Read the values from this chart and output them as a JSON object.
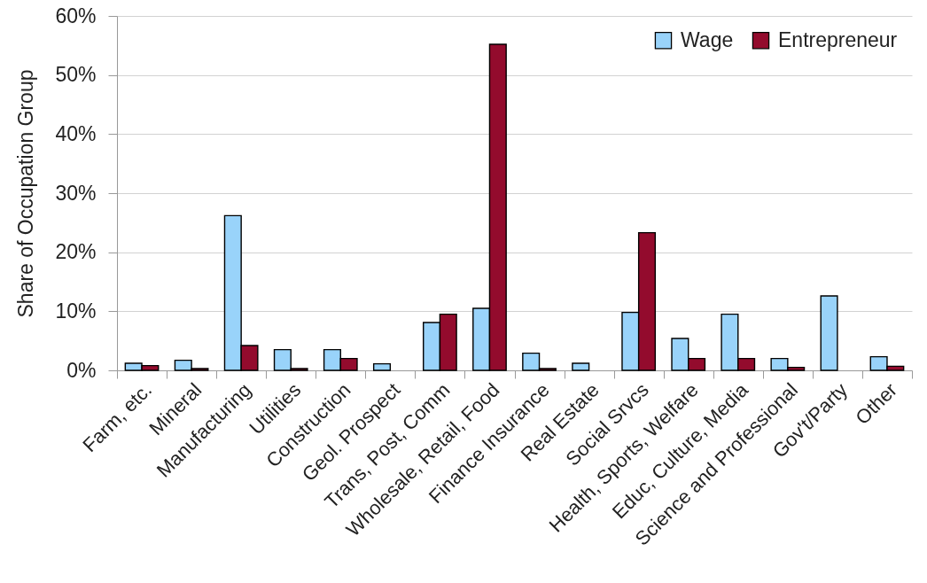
{
  "chart_data": {
    "type": "bar",
    "ylabel": "Share of Occupation Group",
    "categories": [
      "Farm, etc.",
      "Mineral",
      "Manufacturing",
      "Utilities",
      "Construction",
      "Geol. Prospect",
      "Trans, Post, Comm",
      "Wholesale, Retail, Food",
      "Finance Insurance",
      "Real Estate",
      "Social Srvcs",
      "Health, Sports, Welfare",
      "Educ, Culture, Media",
      "Science and Professional",
      "Gov't/Party",
      "Other"
    ],
    "series": [
      {
        "name": "Wage",
        "color": "#99d3fa",
        "values": [
          1.2,
          1.7,
          26.2,
          3.5,
          3.5,
          1.1,
          8.1,
          10.5,
          2.9,
          1.2,
          9.8,
          5.4,
          9.5,
          2.0,
          12.6,
          2.3
        ]
      },
      {
        "name": "Entrepreneur",
        "color": "#930b2d",
        "values": [
          0.8,
          0.3,
          4.2,
          0.3,
          2.0,
          null,
          9.5,
          55.2,
          0.3,
          null,
          23.3,
          2.0,
          2.0,
          0.5,
          null,
          0.7
        ]
      }
    ],
    "ylim": [
      0,
      60
    ],
    "yticks": [
      {
        "value": 0,
        "label": "0%"
      },
      {
        "value": 10,
        "label": "10%"
      },
      {
        "value": 20,
        "label": "20%"
      },
      {
        "value": 30,
        "label": "30%"
      },
      {
        "value": 40,
        "label": "40%"
      },
      {
        "value": 50,
        "label": "50%"
      },
      {
        "value": 60,
        "label": "60%"
      }
    ],
    "grid": "y",
    "legend": "top right"
  }
}
